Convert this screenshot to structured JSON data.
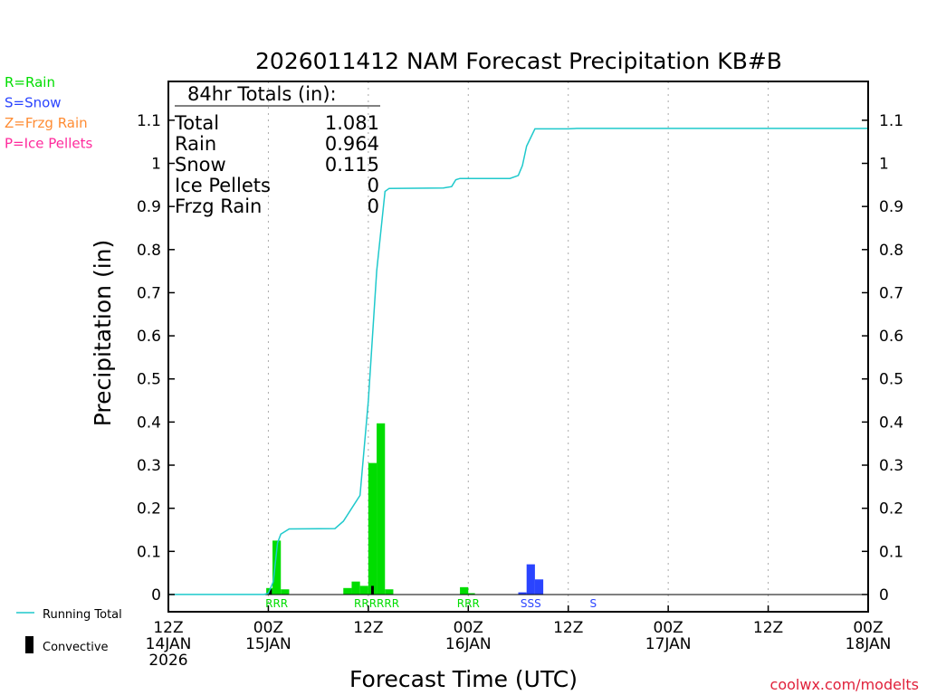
{
  "chart_data": {
    "type": "bar+line",
    "title": "2026011412 NAM Forecast Precipitation KB#B",
    "xlabel": "Forecast Time (UTC)",
    "ylabel": "Precipitation (in)",
    "ylim": [
      -0.04,
      1.19
    ],
    "xlim_hours": [
      0,
      84
    ],
    "y_ticks": [
      {
        "v": 0,
        "l": "0"
      },
      {
        "v": 0.1,
        "l": "0.1"
      },
      {
        "v": 0.2,
        "l": "0.2"
      },
      {
        "v": 0.3,
        "l": "0.3"
      },
      {
        "v": 0.4,
        "l": "0.4"
      },
      {
        "v": 0.5,
        "l": "0.5"
      },
      {
        "v": 0.6,
        "l": "0.6"
      },
      {
        "v": 0.7,
        "l": "0.7"
      },
      {
        "v": 0.8,
        "l": "0.8"
      },
      {
        "v": 0.9,
        "l": "0.9"
      },
      {
        "v": 1,
        "l": "1"
      },
      {
        "v": 1.1,
        "l": "1.1"
      }
    ],
    "x_ticks": [
      {
        "h": 0,
        "lines": [
          "12Z",
          "14JAN",
          "2026"
        ]
      },
      {
        "h": 12,
        "lines": [
          "00Z",
          "15JAN"
        ]
      },
      {
        "h": 24,
        "lines": [
          "12Z"
        ]
      },
      {
        "h": 36,
        "lines": [
          "00Z",
          "16JAN"
        ]
      },
      {
        "h": 48,
        "lines": [
          "12Z"
        ]
      },
      {
        "h": 60,
        "lines": [
          "00Z",
          "17JAN"
        ]
      },
      {
        "h": 72,
        "lines": [
          "12Z"
        ]
      },
      {
        "h": 84,
        "lines": [
          "00Z",
          "18JAN"
        ]
      }
    ],
    "bar_width_hours": 1,
    "bars": [
      {
        "h": 12.25,
        "v": 0.015,
        "type": "R"
      },
      {
        "h": 13,
        "v": 0.125,
        "type": "R"
      },
      {
        "h": 14,
        "v": 0.012,
        "type": "R"
      },
      {
        "h": 21.5,
        "v": 0.015,
        "type": "R"
      },
      {
        "h": 22.5,
        "v": 0.03,
        "type": "R"
      },
      {
        "h": 23.5,
        "v": 0.02,
        "type": "R"
      },
      {
        "h": 24.5,
        "v": 0.305,
        "type": "R"
      },
      {
        "h": 25.5,
        "v": 0.397,
        "type": "R"
      },
      {
        "h": 26.5,
        "v": 0.012,
        "type": "R"
      },
      {
        "h": 35.5,
        "v": 0.017,
        "type": "R"
      },
      {
        "h": 36.3,
        "v": 0.003,
        "type": "R"
      },
      {
        "h": 42.5,
        "v": 0.005,
        "type": "S"
      },
      {
        "h": 43.5,
        "v": 0.07,
        "type": "S"
      },
      {
        "h": 44.5,
        "v": 0.035,
        "type": "S"
      }
    ],
    "convective": [
      {
        "h": 12.25,
        "v": 0.012
      },
      {
        "h": 24.5,
        "v": 0.02
      }
    ],
    "running_total": [
      [
        0,
        0
      ],
      [
        11.5,
        0
      ],
      [
        12,
        0.003
      ],
      [
        12.6,
        0.03
      ],
      [
        13.1,
        0.12
      ],
      [
        13.5,
        0.14
      ],
      [
        14.5,
        0.152
      ],
      [
        20,
        0.153
      ],
      [
        21,
        0.17
      ],
      [
        22,
        0.2
      ],
      [
        23,
        0.23
      ],
      [
        24,
        0.45
      ],
      [
        25,
        0.75
      ],
      [
        26,
        0.935
      ],
      [
        26.5,
        0.942
      ],
      [
        33,
        0.943
      ],
      [
        34,
        0.946
      ],
      [
        34.5,
        0.962
      ],
      [
        35,
        0.965
      ],
      [
        41,
        0.965
      ],
      [
        42,
        0.972
      ],
      [
        42.5,
        0.995
      ],
      [
        43,
        1.04
      ],
      [
        44,
        1.08
      ],
      [
        48,
        1.08
      ],
      [
        49,
        1.081
      ],
      [
        84,
        1.081
      ]
    ],
    "ptype_markers": [
      {
        "h": 13,
        "text": "RRR",
        "type": "R"
      },
      {
        "h": 25,
        "text": "RRRRRR",
        "type": "R"
      },
      {
        "h": 36,
        "text": "RRR",
        "type": "R"
      },
      {
        "h": 43.5,
        "text": "SSS",
        "type": "S"
      },
      {
        "h": 51,
        "text": "S",
        "type": "S"
      }
    ]
  },
  "legend_types": [
    {
      "key": "R",
      "label": "R=Rain",
      "color": "#00dd00"
    },
    {
      "key": "S",
      "label": "S=Snow",
      "color": "#2a44ff"
    },
    {
      "key": "Z",
      "label": "Z=Frzg Rain",
      "color": "#ff8c33"
    },
    {
      "key": "P",
      "label": "P=Ice Pellets",
      "color": "#ff2a9c"
    }
  ],
  "totals": {
    "header": "84hr Totals (in):",
    "rows": [
      {
        "label": "Total",
        "value": "1.081"
      },
      {
        "label": "Rain",
        "value": "0.964"
      },
      {
        "label": "Snow",
        "value": "0.115"
      },
      {
        "label": "Ice Pellets",
        "value": "0"
      },
      {
        "label": "Frzg Rain",
        "value": "0"
      }
    ]
  },
  "bottom_legend": {
    "running_total": "Running Total",
    "convective": "Convective"
  },
  "colors": {
    "running_total": "#1fc9cc",
    "convective": "#000000",
    "grid": "#aaaaaa",
    "credit": "#e0203a"
  },
  "credit": "coolwx.com/modelts"
}
